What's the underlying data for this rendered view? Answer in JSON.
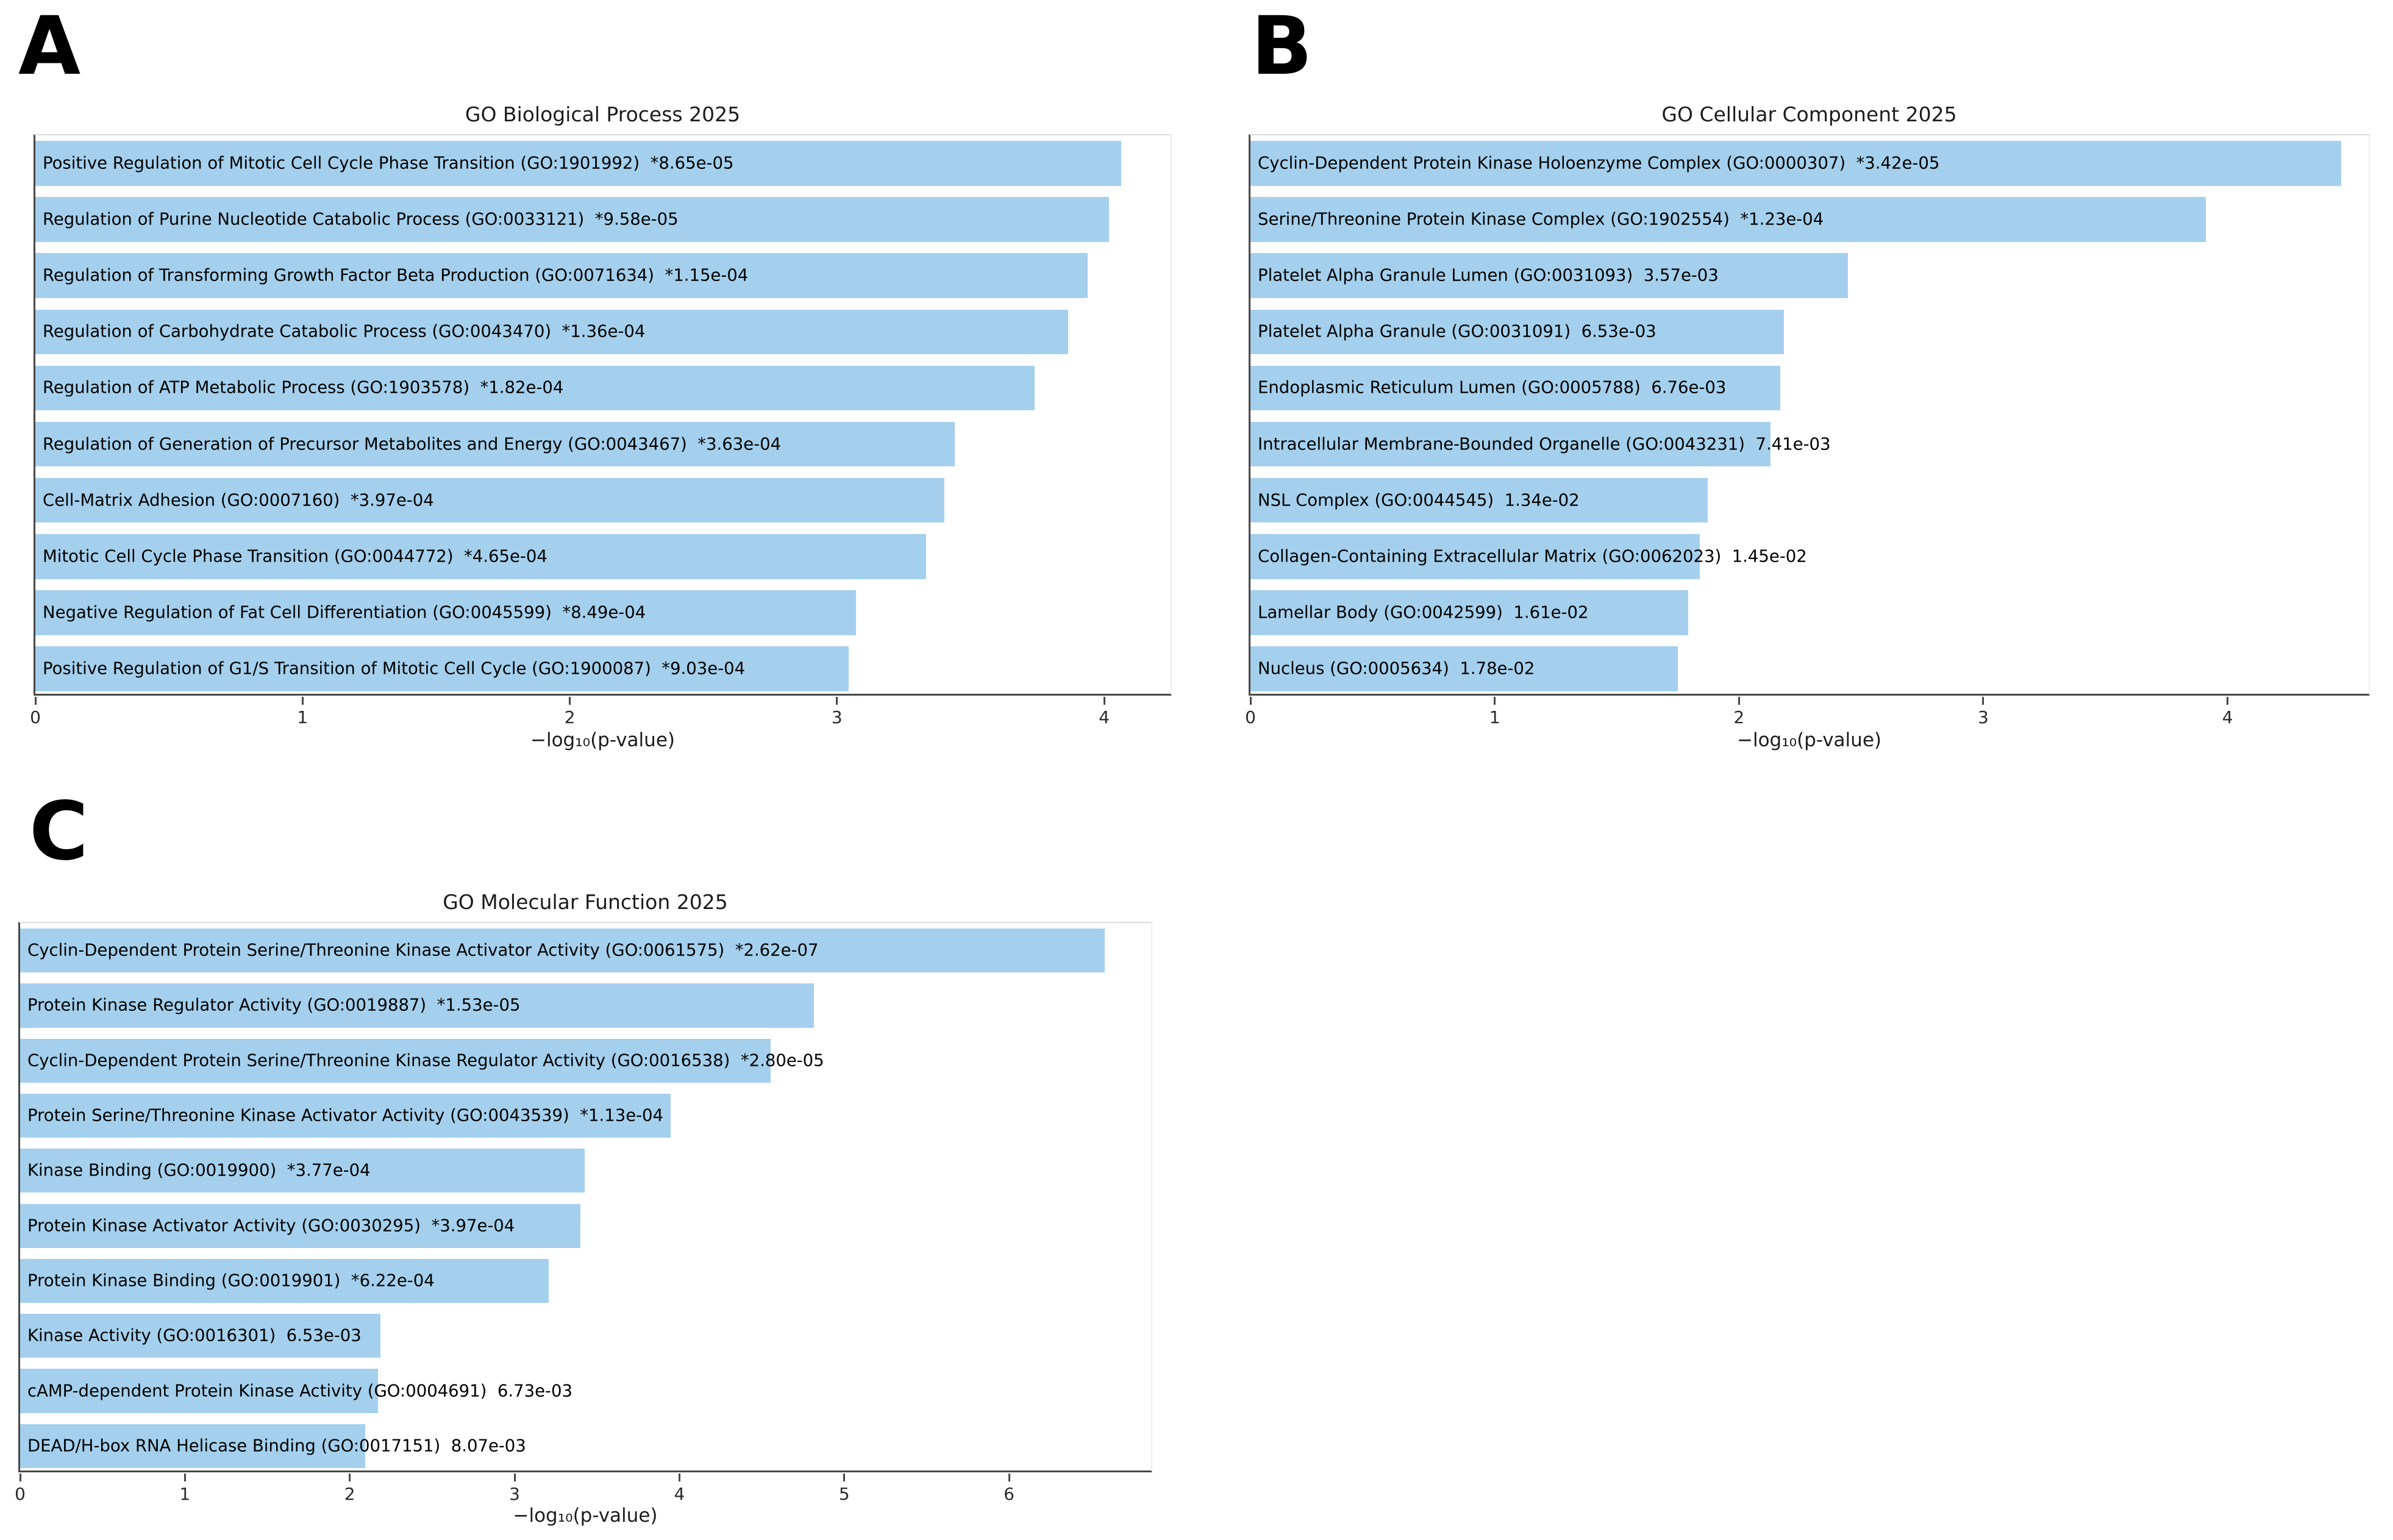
{
  "figure_background": "#ffffff",
  "bar_color": "#A4D0ED",
  "chart_data": [
    {
      "type": "bar",
      "orientation": "horizontal",
      "panel_label": "A",
      "title": "GO Biological Process 2025",
      "xlabel": "−log₁₀(p-value)",
      "xlim": [
        0,
        4.26
      ],
      "xticks": [
        0,
        1,
        2,
        3,
        4
      ],
      "grid": false,
      "legend": null,
      "bar_color": "#A4D0ED",
      "categories": [
        "Positive Regulation of Mitotic Cell Cycle Phase Transition (GO:1901992)",
        "Regulation of Purine Nucleotide Catabolic Process (GO:0033121)",
        "Regulation of Transforming Growth Factor Beta Production (GO:0071634)",
        "Regulation of Carbohydrate Catabolic Process (GO:0043470)",
        "Regulation of ATP Metabolic Process (GO:1903578)",
        "Regulation of Generation of Precursor Metabolites and Energy (GO:0043467)",
        "Cell-Matrix Adhesion (GO:0007160)",
        "Mitotic Cell Cycle Phase Transition (GO:0044772)",
        "Negative Regulation of Fat Cell Differentiation (GO:0045599)",
        "Positive Regulation of G1/S Transition of Mitotic Cell Cycle (GO:1900087)"
      ],
      "pvalues": [
        "*8.65e-05",
        "*9.58e-05",
        "*1.15e-04",
        "*1.36e-04",
        "*1.82e-04",
        "*3.63e-04",
        "*3.97e-04",
        "*4.65e-04",
        "*8.49e-04",
        "*9.03e-04"
      ],
      "values": [
        4.063,
        4.019,
        3.939,
        3.866,
        3.74,
        3.44,
        3.401,
        3.333,
        3.071,
        3.044
      ]
    },
    {
      "type": "bar",
      "orientation": "horizontal",
      "panel_label": "B",
      "title": "GO Cellular Component 2025",
      "xlabel": "−log₁₀(p-value)",
      "xlim": [
        0,
        4.59
      ],
      "xticks": [
        0,
        1,
        2,
        3,
        4
      ],
      "grid": false,
      "legend": null,
      "bar_color": "#A4D0ED",
      "categories": [
        "Cyclin-Dependent Protein Kinase Holoenzyme Complex (GO:0000307)",
        "Serine/Threonine Protein Kinase Complex (GO:1902554)",
        "Platelet Alpha Granule Lumen (GO:0031093)",
        "Platelet Alpha Granule (GO:0031091)",
        "Endoplasmic Reticulum Lumen (GO:0005788)",
        "Intracellular Membrane-Bounded Organelle (GO:0043231)",
        "NSL Complex (GO:0044545)",
        "Collagen-Containing Extracellular Matrix (GO:0062023)",
        "Lamellar Body (GO:0042599)",
        "Nucleus (GO:0005634)"
      ],
      "pvalues": [
        "*3.42e-05",
        "*1.23e-04",
        "3.57e-03",
        "6.53e-03",
        "6.76e-03",
        "7.41e-03",
        "1.34e-02",
        "1.45e-02",
        "1.61e-02",
        "1.78e-02"
      ],
      "values": [
        4.466,
        3.91,
        2.447,
        2.185,
        2.17,
        2.13,
        1.873,
        1.839,
        1.793,
        1.75
      ]
    },
    {
      "type": "bar",
      "orientation": "horizontal",
      "panel_label": "C",
      "title": "GO Molecular Function 2025",
      "xlabel": "−log₁₀(p-value)",
      "xlim": [
        0,
        6.88
      ],
      "xticks": [
        0,
        1,
        2,
        3,
        4,
        5,
        6
      ],
      "grid": false,
      "legend": null,
      "bar_color": "#A4D0ED",
      "categories": [
        "Cyclin-Dependent Protein Serine/Threonine Kinase Activator Activity (GO:0061575)",
        "Protein Kinase Regulator Activity (GO:0019887)",
        "Cyclin-Dependent Protein Serine/Threonine Kinase Regulator Activity (GO:0016538)",
        "Protein Serine/Threonine Kinase Activator Activity (GO:0043539)",
        "Kinase Binding (GO:0019900)",
        "Protein Kinase Activator Activity (GO:0030295)",
        "Protein Kinase Binding (GO:0019901)",
        "Kinase Activity (GO:0016301)",
        "cAMP-dependent Protein Kinase Activity (GO:0004691)",
        "DEAD/H-box RNA Helicase Binding (GO:0017151)"
      ],
      "pvalues": [
        "*2.62e-07",
        "*1.53e-05",
        "*2.80e-05",
        "*1.13e-04",
        "*3.77e-04",
        "*3.97e-04",
        "*6.22e-04",
        "6.53e-03",
        "6.73e-03",
        "8.07e-03"
      ],
      "values": [
        6.582,
        4.815,
        4.553,
        3.947,
        3.424,
        3.401,
        3.206,
        2.185,
        2.172,
        2.093
      ]
    }
  ]
}
